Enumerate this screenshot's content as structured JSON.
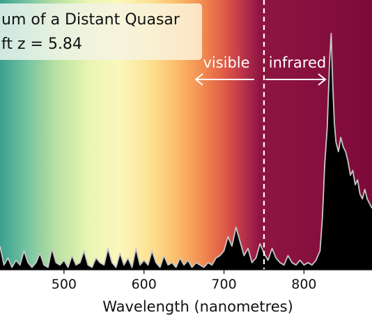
{
  "chart_data": {
    "type": "area",
    "title_line1": "um of a Distant Quasar",
    "title_line2": "ft z = 5.84",
    "xlabel": "Wavelength (nanometres)",
    "ylabel": "",
    "xlim": [
      420,
      885
    ],
    "ylim": [
      0,
      1.0
    ],
    "x_ticks": [
      500,
      600,
      700,
      800
    ],
    "x_tick_labels": [
      "500",
      "600",
      "700",
      "800"
    ],
    "divider_x": 750,
    "divider_style": "dashed white vertical line",
    "annotations": [
      {
        "text": "visible",
        "arrow": "left"
      },
      {
        "text": "infrared",
        "arrow": "right"
      }
    ],
    "background": "visible-light spectrum gradient (teal → green → yellow → orange → red) fading into dark crimson for infrared",
    "colors": {
      "fill": "#000000",
      "spectrum_line": "#c8c8c8",
      "infrared_bg": "#7e0a3a",
      "annotation": "#ffffff"
    },
    "series": [
      {
        "x": [
          420,
          425,
          430,
          435,
          440,
          445,
          450,
          455,
          460,
          465,
          470,
          475,
          480,
          485,
          490,
          495,
          500,
          505,
          510,
          515,
          520,
          525,
          530,
          535,
          540,
          545,
          550,
          555,
          560,
          565,
          570,
          575,
          580,
          585,
          590,
          595,
          600,
          605,
          610,
          615,
          620,
          625,
          630,
          635,
          640,
          645,
          650,
          655,
          660,
          665,
          670,
          675,
          680,
          685,
          690,
          695,
          700,
          705,
          710,
          715,
          720,
          725,
          730,
          735,
          740,
          745,
          750,
          755,
          760,
          765,
          770,
          775,
          780,
          785,
          790,
          795,
          800,
          805,
          810,
          815,
          820,
          823,
          826,
          829,
          832,
          834,
          836,
          838,
          840,
          843,
          846,
          849,
          852,
          855,
          858,
          861,
          864,
          867,
          870,
          873,
          876,
          879,
          882,
          885
        ],
        "y": [
          0.1,
          0.02,
          0.05,
          0.01,
          0.04,
          0.02,
          0.08,
          0.03,
          0.01,
          0.03,
          0.07,
          0.02,
          0.01,
          0.09,
          0.03,
          0.02,
          0.04,
          0.01,
          0.06,
          0.02,
          0.03,
          0.08,
          0.02,
          0.01,
          0.05,
          0.03,
          0.02,
          0.09,
          0.03,
          0.01,
          0.07,
          0.02,
          0.05,
          0.01,
          0.09,
          0.02,
          0.04,
          0.02,
          0.08,
          0.03,
          0.01,
          0.06,
          0.02,
          0.03,
          0.01,
          0.05,
          0.02,
          0.04,
          0.01,
          0.03,
          0.02,
          0.01,
          0.03,
          0.02,
          0.05,
          0.06,
          0.08,
          0.14,
          0.1,
          0.18,
          0.12,
          0.06,
          0.09,
          0.03,
          0.05,
          0.11,
          0.07,
          0.04,
          0.09,
          0.05,
          0.03,
          0.02,
          0.06,
          0.03,
          0.02,
          0.04,
          0.02,
          0.03,
          0.02,
          0.04,
          0.08,
          0.22,
          0.45,
          0.6,
          0.88,
          1.0,
          0.78,
          0.62,
          0.54,
          0.5,
          0.56,
          0.52,
          0.5,
          0.46,
          0.4,
          0.42,
          0.36,
          0.38,
          0.32,
          0.3,
          0.34,
          0.3,
          0.28,
          0.26
        ]
      }
    ]
  }
}
